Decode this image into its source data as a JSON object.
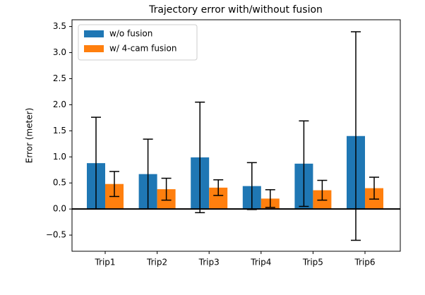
{
  "chart_data": {
    "type": "bar",
    "title": "Trajectory error with/without fusion",
    "ylabel": "Error (meter)",
    "categories": [
      "Trip1",
      "Trip2",
      "Trip3",
      "Trip4",
      "Trip5",
      "Trip6"
    ],
    "series": [
      {
        "name": "w/o fusion",
        "color": "#1f77b4",
        "values": [
          0.88,
          0.67,
          0.99,
          0.44,
          0.87,
          1.4
        ],
        "errors": [
          0.88,
          0.67,
          1.06,
          0.45,
          0.82,
          2.0
        ]
      },
      {
        "name": "w/ 4-cam fusion",
        "color": "#ff7f0e",
        "values": [
          0.48,
          0.38,
          0.41,
          0.2,
          0.36,
          0.4
        ],
        "errors": [
          0.24,
          0.21,
          0.15,
          0.17,
          0.19,
          0.21
        ]
      }
    ],
    "ylim": [
      -0.81,
      3.63
    ],
    "yticks": [
      {
        "value": -0.5,
        "label": "−0.5"
      },
      {
        "value": 0,
        "label": "0.0"
      },
      0.5,
      {
        "value": 1,
        "label": "1.0"
      },
      1.5,
      {
        "value": 2,
        "label": "2.0"
      },
      2.5,
      {
        "value": 3,
        "label": "3.0"
      },
      3.5
    ],
    "legend": "upper left",
    "grid": false
  }
}
